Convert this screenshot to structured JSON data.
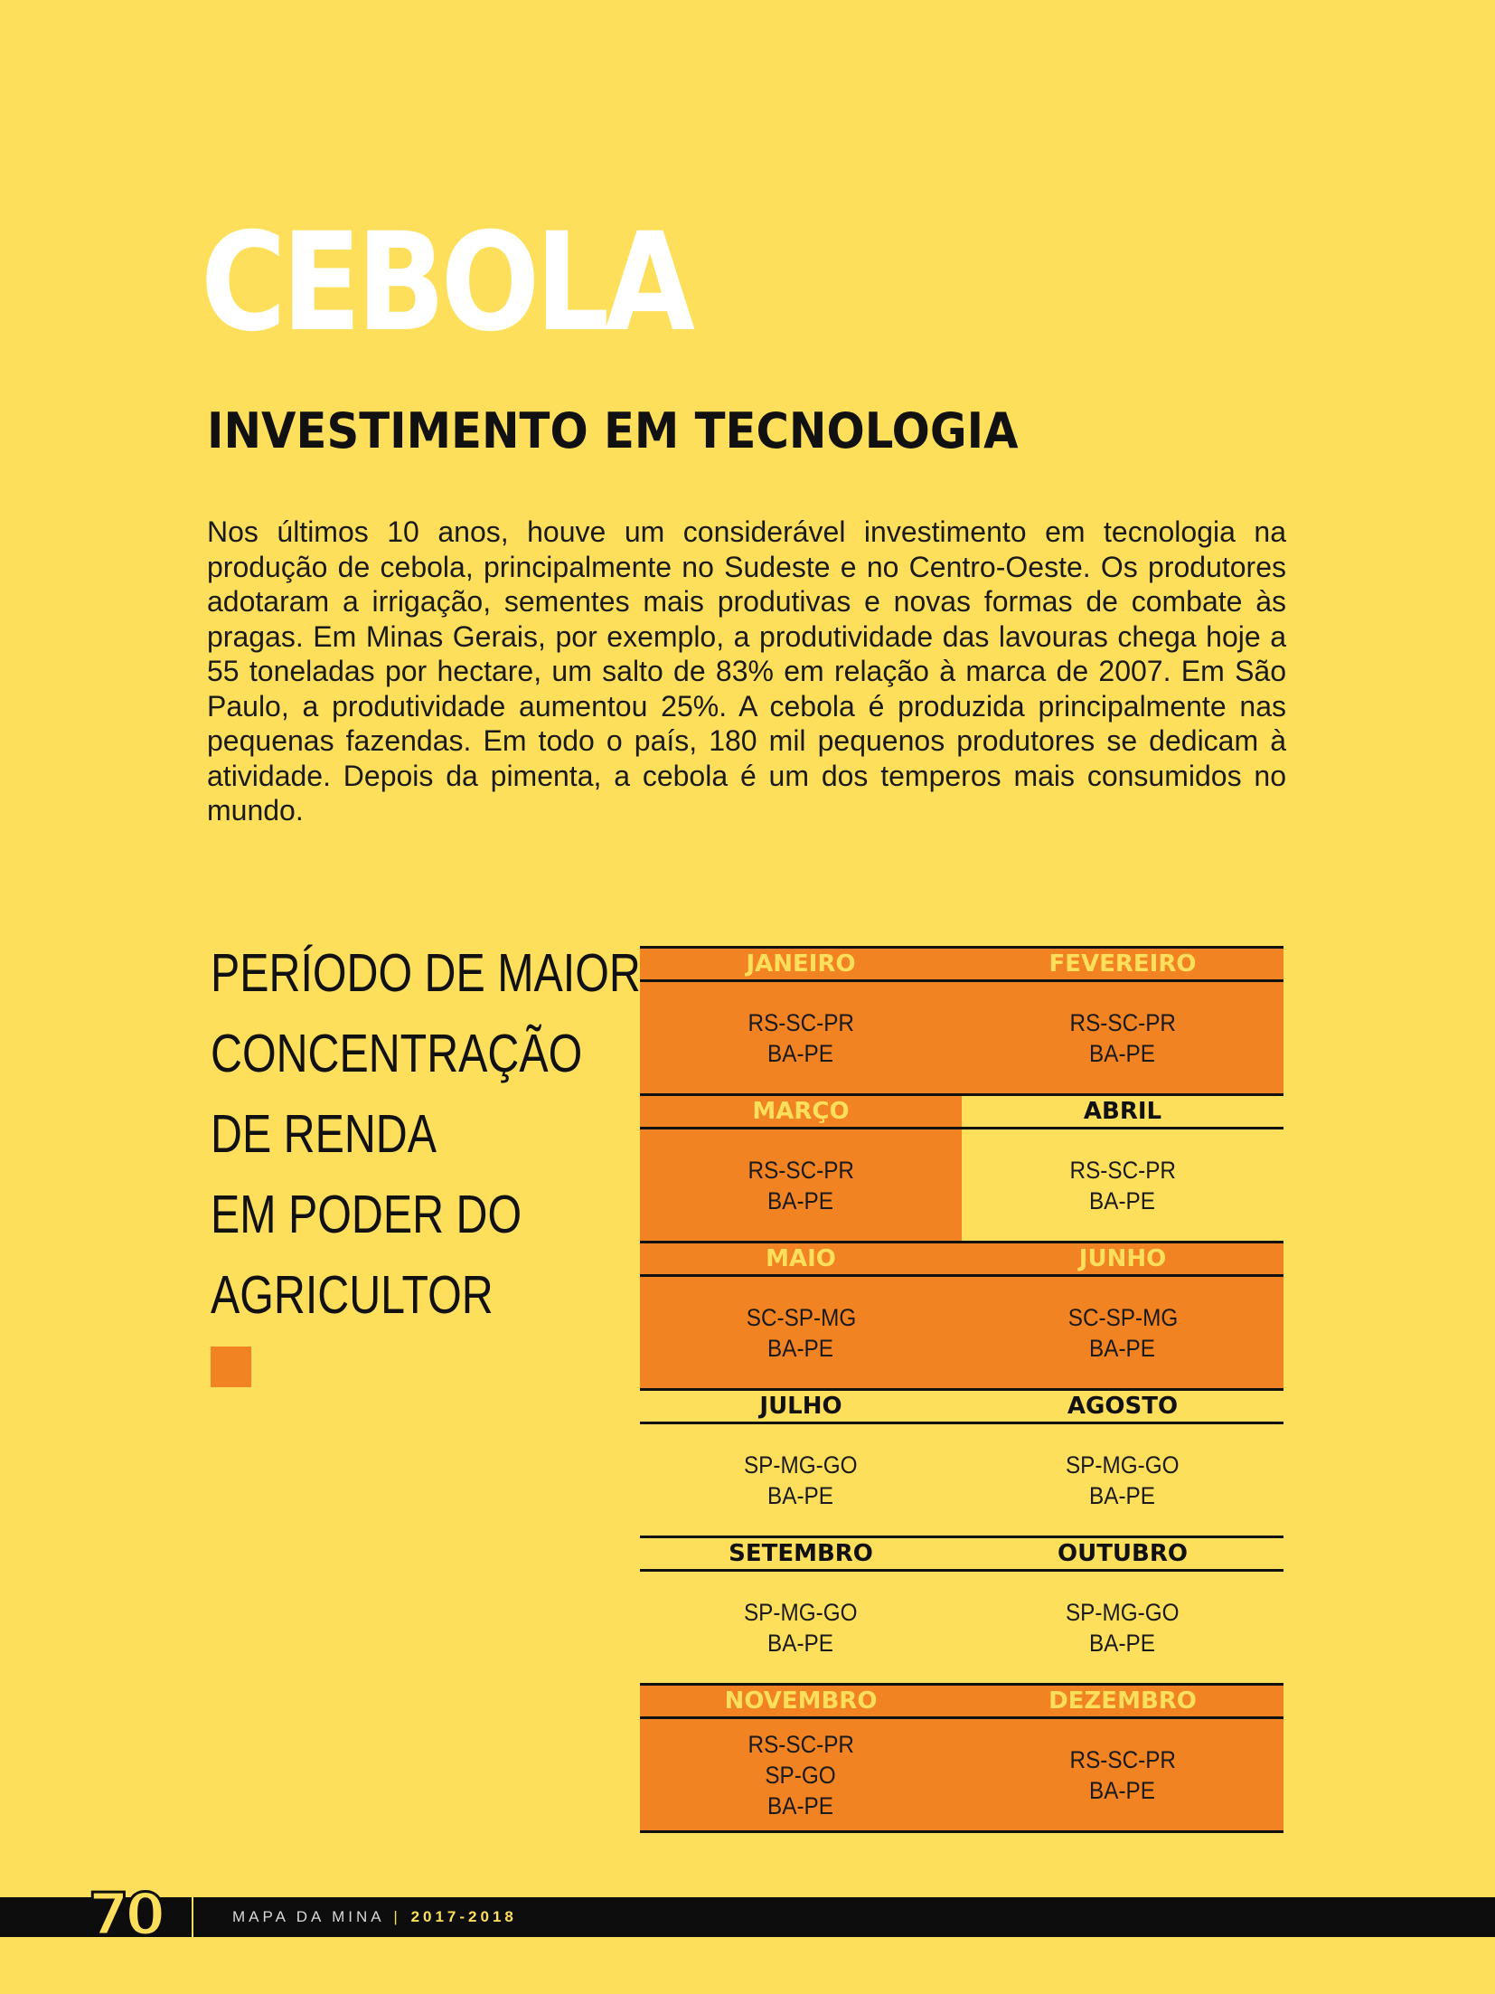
{
  "page": {
    "title": "CEBOLA",
    "subtitle": "INVESTIMENTO EM TECNOLOGIA",
    "body": "Nos últimos 10 anos, houve um considerável investimento em tecnologia na produção de cebola, principalmente no Sudeste e no Centro-Oeste. Os produtores adotaram a irrigação, sementes mais produtivas e novas formas de combate às pragas. Em Minas Gerais, por exemplo, a produtividade das lavouras chega hoje a 55 toneladas por hectare, um salto de 83% em relação à marca de 2007. Em São Paulo, a produtividade aumentou 25%. A cebola é produzida principalmente nas pequenas fazendas.  Em todo o país, 180 mil pequenos produtores se dedicam à atividade. Depois da pimenta, a cebola é um dos temperos mais consumidos no mundo."
  },
  "side_heading": {
    "lines": [
      "PERÍODO DE MAIOR",
      "CONCENTRAÇÃO",
      "DE RENDA",
      "EM PODER DO",
      "AGRICULTOR"
    ],
    "legend_color": "#f28322"
  },
  "calendar": {
    "highlight_color": "#f28322",
    "months": [
      {
        "name": "JANEIRO",
        "states": [
          "RS-SC-PR",
          "BA-PE"
        ],
        "highlight": true
      },
      {
        "name": "FEVEREIRO",
        "states": [
          "RS-SC-PR",
          "BA-PE"
        ],
        "highlight": true
      },
      {
        "name": "MARÇO",
        "states": [
          "RS-SC-PR",
          "BA-PE"
        ],
        "highlight": true
      },
      {
        "name": "ABRIL",
        "states": [
          "RS-SC-PR",
          "BA-PE"
        ],
        "highlight": false
      },
      {
        "name": "MAIO",
        "states": [
          "SC-SP-MG",
          "BA-PE"
        ],
        "highlight": true
      },
      {
        "name": "JUNHO",
        "states": [
          "SC-SP-MG",
          "BA-PE"
        ],
        "highlight": true
      },
      {
        "name": "JULHO",
        "states": [
          "SP-MG-GO",
          "BA-PE"
        ],
        "highlight": false
      },
      {
        "name": "AGOSTO",
        "states": [
          "SP-MG-GO",
          "BA-PE"
        ],
        "highlight": false
      },
      {
        "name": "SETEMBRO",
        "states": [
          "SP-MG-GO",
          "BA-PE"
        ],
        "highlight": false
      },
      {
        "name": "OUTUBRO",
        "states": [
          "SP-MG-GO",
          "BA-PE"
        ],
        "highlight": false
      },
      {
        "name": "NOVEMBRO",
        "states": [
          "RS-SC-PR",
          "SP-GO",
          "BA-PE"
        ],
        "highlight": true
      },
      {
        "name": "DEZEMBRO",
        "states": [
          "RS-SC-PR",
          "BA-PE"
        ],
        "highlight": true
      }
    ]
  },
  "footer": {
    "page_number": "70",
    "publication": "MAPA DA MINA",
    "separator": "|",
    "years": "2017-2018"
  }
}
